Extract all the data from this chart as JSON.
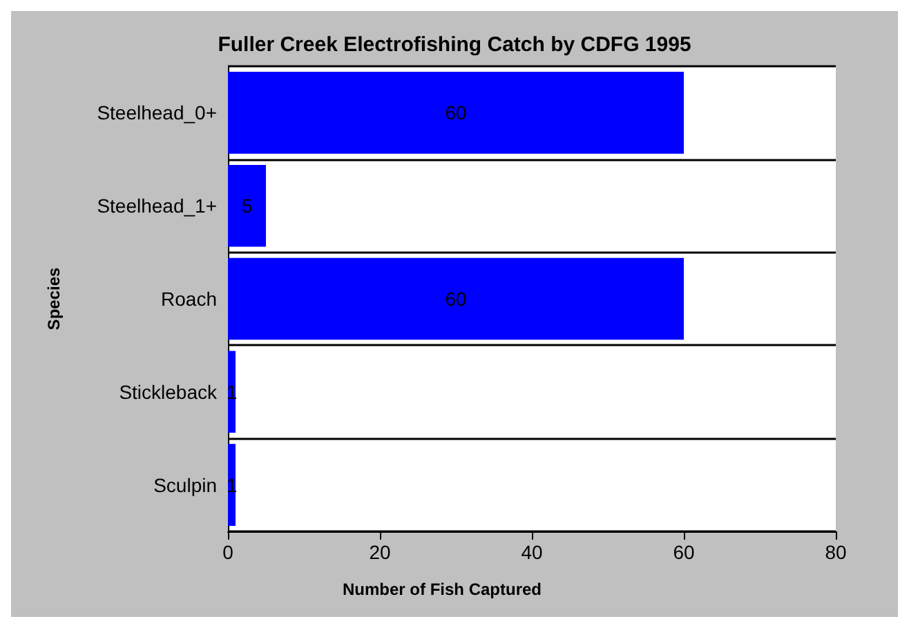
{
  "chart_data": {
    "type": "bar",
    "orientation": "horizontal",
    "title": "Fuller Creek Electrofishing Catch by CDFG 1995",
    "xlabel": "Number of Fish Captured",
    "ylabel": "Species",
    "categories": [
      "Steelhead_0+",
      "Steelhead_1+",
      "Roach",
      "Stickleback",
      "Sculpin"
    ],
    "values": [
      60,
      5,
      60,
      1,
      1
    ],
    "color": "#0000ff",
    "data_labels": true,
    "xlim": [
      0,
      80
    ],
    "xticks": [
      0,
      20,
      40,
      60,
      80
    ],
    "grid": "y"
  }
}
